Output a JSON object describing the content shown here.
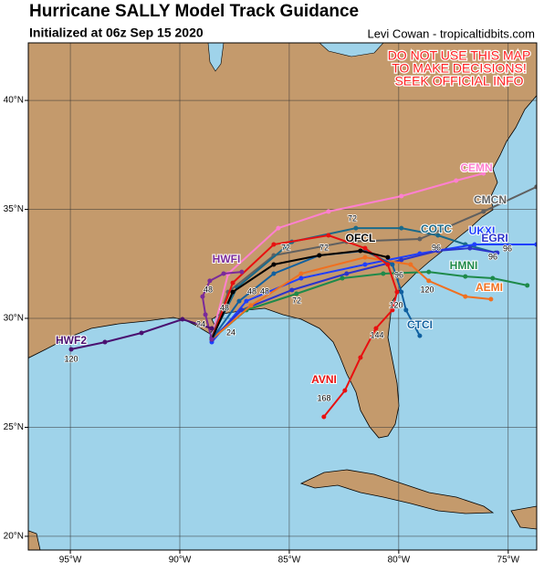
{
  "header": {
    "title": "Hurricane SALLY Model Track Guidance",
    "subtitle": "Initialized at 06z Sep 15 2020",
    "credit": "Levi Cowan - tropicaltidbits.com"
  },
  "warning": [
    "DO NOT USE THIS MAP",
    "TO MAKE DECISIONS!",
    "SEEK OFFICIAL INFO"
  ],
  "chart_data": {
    "type": "track-map",
    "xlim": [
      -96.92,
      -73.7
    ],
    "ylim": [
      19.37,
      42.64
    ],
    "xticks": [
      {
        "value": -95,
        "label": "95°W"
      },
      {
        "value": -90,
        "label": "90°W"
      },
      {
        "value": -85,
        "label": "85°W"
      },
      {
        "value": -80,
        "label": "80°W"
      },
      {
        "value": -75,
        "label": "75°W"
      }
    ],
    "yticks": [
      {
        "value": 40,
        "label": "40°N"
      },
      {
        "value": 35,
        "label": "35°N"
      },
      {
        "value": 30,
        "label": "30°N"
      },
      {
        "value": 25,
        "label": "25°N"
      },
      {
        "value": 20,
        "label": "20°N"
      }
    ],
    "grid": true,
    "series": [
      {
        "name": "CEMN",
        "color": "#ff80d0",
        "lon": [
          -88.54,
          -87.79,
          -85.5,
          -83.21,
          -79.88,
          -77.38,
          -76.13
        ],
        "lat": [
          29.12,
          32.05,
          34.14,
          34.9,
          35.61,
          36.32,
          36.65
        ]
      },
      {
        "name": "CMCN",
        "color": "#606060",
        "lon": [
          -88.54,
          -87.79,
          -85.71,
          -82.38,
          -79.04,
          -76.13,
          -73.71
        ],
        "lat": [
          29.12,
          31.21,
          32.89,
          33.51,
          33.64,
          34.9,
          36.03
        ]
      },
      {
        "name": "COTC",
        "color": "#1a6a8a",
        "lon": [
          -88.54,
          -87.38,
          -84.88,
          -81.96,
          -79.88,
          -78.21,
          -76.96,
          -75.58
        ],
        "lat": [
          29.12,
          31.42,
          33.51,
          34.14,
          34.14,
          33.81,
          33.39,
          33.01
        ]
      },
      {
        "name": "UKXI",
        "color": "#1f3fff",
        "lon": [
          -88.54,
          -86.96,
          -84.46,
          -81.54,
          -79.04,
          -76.54,
          -73.71
        ],
        "lat": [
          28.91,
          30.79,
          31.84,
          32.47,
          32.97,
          33.39,
          33.39
        ]
      },
      {
        "name": "EGRI",
        "color": "#2b33cc",
        "lon": [
          -88.54,
          -87.17,
          -84.88,
          -82.38,
          -79.88,
          -78.21,
          -76.75,
          -75.5
        ],
        "lat": [
          29.04,
          30.38,
          31.3,
          32.05,
          32.68,
          33.1,
          33.22,
          33.01
        ]
      },
      {
        "name": "HMNI",
        "color": "#1e8a4a",
        "lon": [
          -88.54,
          -86.96,
          -84.67,
          -82.58,
          -80.71,
          -78.63,
          -76.96,
          -75.71,
          -74.13
        ],
        "lat": [
          29.04,
          30.38,
          31.13,
          31.84,
          32.05,
          32.13,
          31.92,
          31.84,
          31.51
        ]
      },
      {
        "name": "AEMI",
        "color": "#f07020",
        "lon": [
          -88.54,
          -86.75,
          -84.46,
          -81.54,
          -79.46,
          -78.63,
          -76.96,
          -75.79
        ],
        "lat": [
          29.04,
          30.59,
          32.05,
          32.8,
          32.47,
          31.72,
          31.0,
          30.88
        ]
      },
      {
        "name": "CTCI",
        "color": "#1060a0",
        "lon": [
          -88.54,
          -87.29,
          -85.71,
          -83.63,
          -81.54,
          -80.29,
          -79.88,
          -79.67,
          -79.04
        ],
        "lat": [
          29.04,
          30.79,
          32.05,
          32.89,
          33.1,
          32.47,
          31.21,
          30.38,
          29.2
        ]
      },
      {
        "name": "AVNI",
        "color": "#e81010",
        "lon": [
          -88.54,
          -87.58,
          -85.71,
          -83.21,
          -81.54,
          -80.5,
          -80.08,
          -80.29,
          -81.04,
          -81.75,
          -82.46,
          -83.42
        ],
        "lat": [
          29.04,
          31.63,
          33.39,
          33.81,
          33.22,
          32.47,
          31.21,
          30.38,
          29.54,
          28.2,
          26.69,
          25.48
        ]
      },
      {
        "name": "OFCL",
        "color": "#000000",
        "lon": [
          -88.54,
          -87.58,
          -85.71,
          -83.63,
          -81.75,
          -80.5
        ],
        "lat": [
          29.04,
          31.21,
          32.47,
          32.89,
          33.1,
          32.8
        ]
      },
      {
        "name": "HWFI",
        "color": "#7a2a9a",
        "lon": [
          -88.54,
          -88.83,
          -88.96,
          -88.63,
          -88.0,
          -87.17
        ],
        "lat": [
          29.04,
          30.17,
          31.0,
          31.72,
          32.05,
          32.13
        ]
      },
      {
        "name": "HWF2",
        "color": "#4a1070",
        "lon": [
          -88.54,
          -89.88,
          -91.75,
          -93.42,
          -94.96
        ],
        "lat": [
          29.54,
          29.96,
          29.33,
          28.91,
          28.58
        ]
      }
    ],
    "hour_labels": [
      120,
      24,
      24,
      48,
      48,
      48,
      48,
      72,
      72,
      72,
      72,
      96,
      96,
      96,
      96,
      120,
      120,
      144,
      168
    ]
  }
}
